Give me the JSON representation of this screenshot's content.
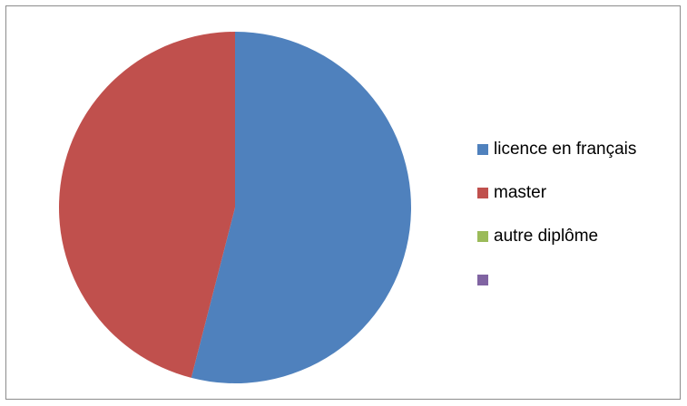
{
  "chart_data": {
    "type": "pie",
    "title": "",
    "categories": [
      "licence en français",
      "master",
      "autre diplôme",
      ""
    ],
    "values": [
      54,
      46,
      0,
      0
    ],
    "colors": [
      "#4f81bd",
      "#c0504d",
      "#9bbb59",
      "#8064a2"
    ],
    "legend_position": "right",
    "start_angle_deg": 0,
    "direction": "clockwise"
  }
}
